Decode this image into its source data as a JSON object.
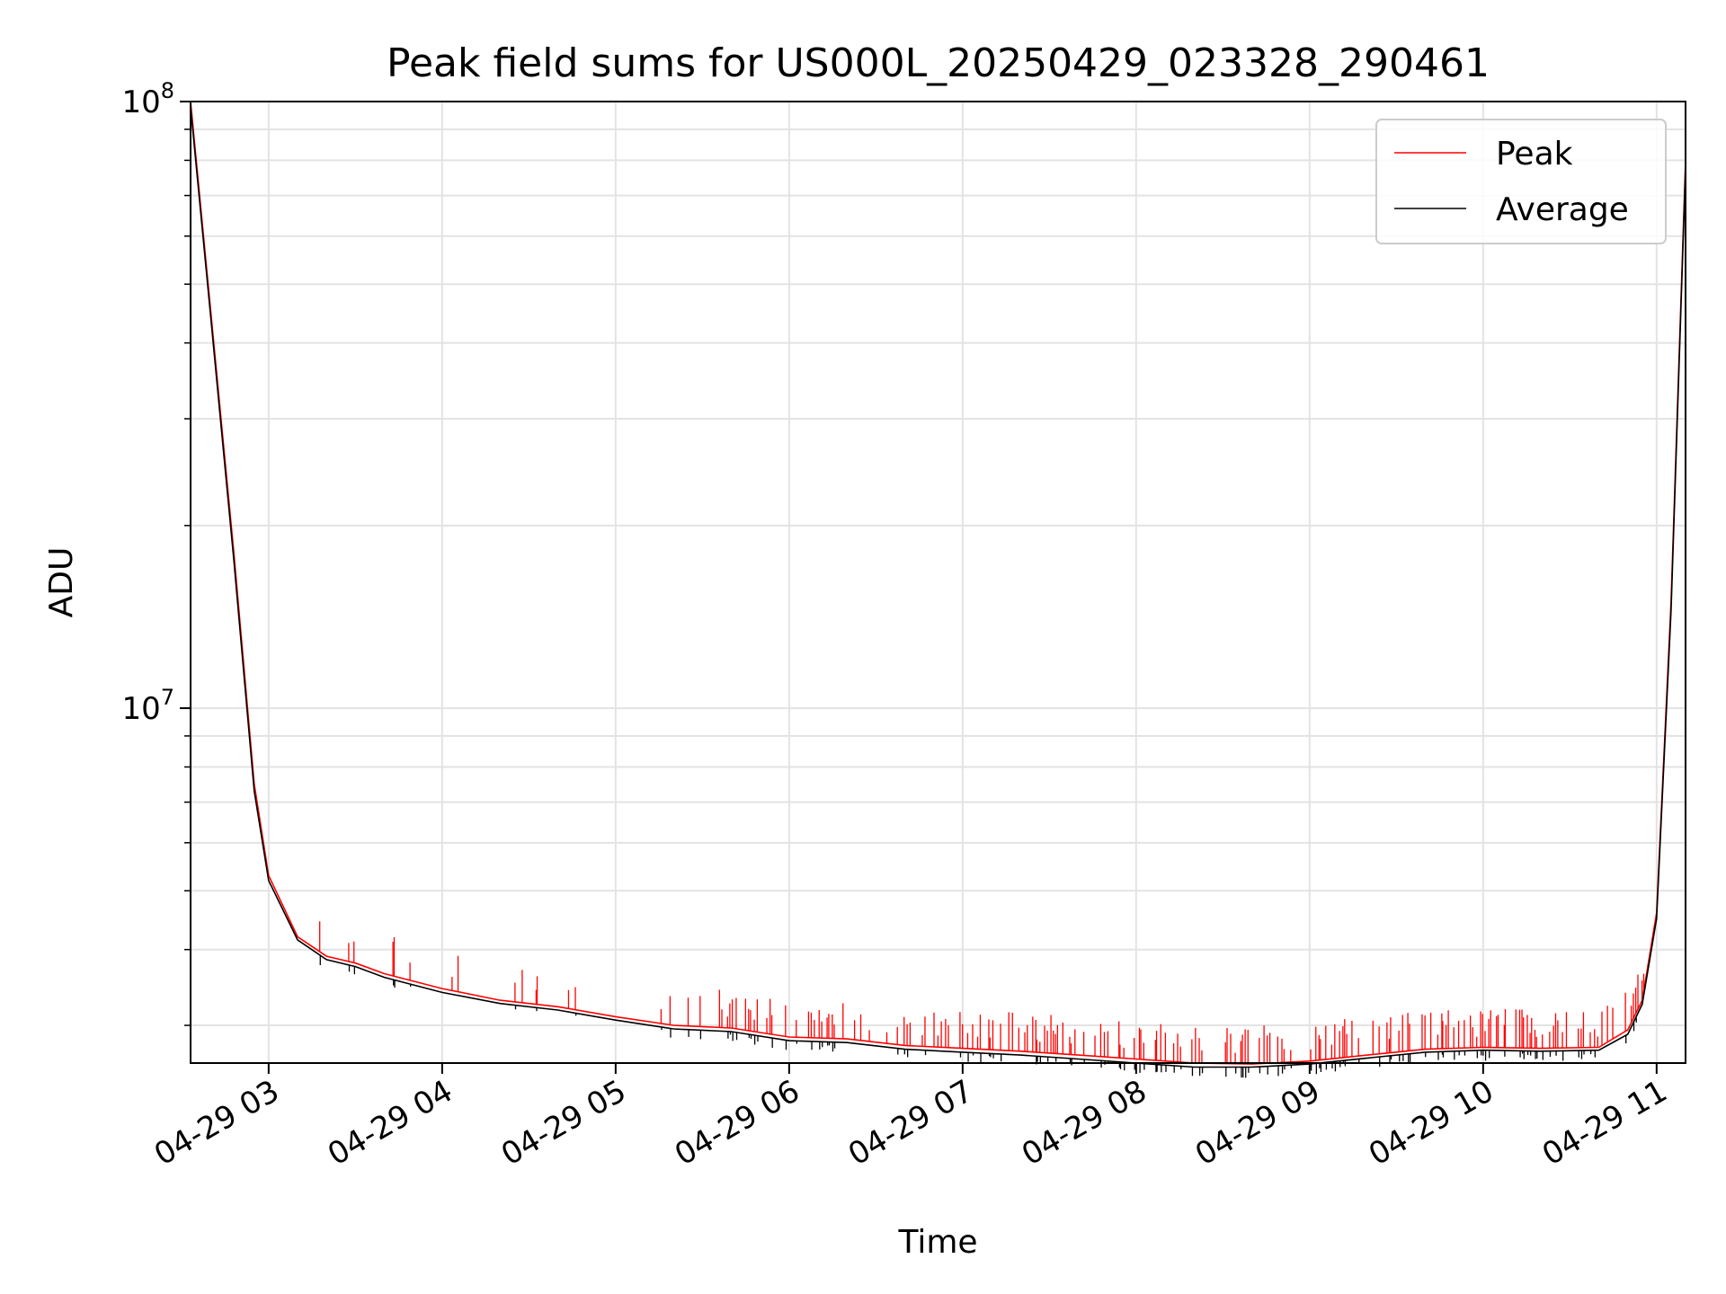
{
  "chart_data": {
    "type": "line",
    "title": "Peak field sums for US000L_20250429_023328_290461",
    "xlabel": "Time",
    "ylabel": "ADU",
    "yscale": "log",
    "ylim": [
      2600000,
      100000000
    ],
    "xlim": [
      "2025-04-29 02:33",
      "2025-04-29 11:10"
    ],
    "grid": true,
    "legend_position": "top-right",
    "x_tick_labels": [
      "04-29 03",
      "04-29 04",
      "04-29 05",
      "04-29 06",
      "04-29 07",
      "04-29 08",
      "04-29 09",
      "04-29 10",
      "04-29 11"
    ],
    "y_tick_labels": [
      {
        "base": "10",
        "exp": "8",
        "value": 100000000
      },
      {
        "base": "10",
        "exp": "7",
        "value": 10000000
      }
    ],
    "colors": {
      "Peak": "#ff0000",
      "Average": "#000000"
    },
    "series": [
      {
        "name": "Peak",
        "x": [
          "2025-04-29 02:33",
          "2025-04-29 02:40",
          "2025-04-29 02:48",
          "2025-04-29 02:55",
          "2025-04-29 03:00",
          "2025-04-29 03:10",
          "2025-04-29 03:20",
          "2025-04-29 03:30",
          "2025-04-29 03:40",
          "2025-04-29 04:00",
          "2025-04-29 04:20",
          "2025-04-29 04:40",
          "2025-04-29 05:00",
          "2025-04-29 05:20",
          "2025-04-29 05:40",
          "2025-04-29 06:00",
          "2025-04-29 06:20",
          "2025-04-29 06:40",
          "2025-04-29 07:00",
          "2025-04-29 07:20",
          "2025-04-29 07:40",
          "2025-04-29 08:00",
          "2025-04-29 08:20",
          "2025-04-29 08:40",
          "2025-04-29 09:00",
          "2025-04-29 09:20",
          "2025-04-29 09:40",
          "2025-04-29 10:00",
          "2025-04-29 10:20",
          "2025-04-29 10:40",
          "2025-04-29 10:50",
          "2025-04-29 10:55",
          "2025-04-29 11:00",
          "2025-04-29 11:05",
          "2025-04-29 11:10"
        ],
        "y": [
          100000000,
          45000000,
          18000000,
          7500000,
          5300000,
          4200000,
          3900000,
          3800000,
          3650000,
          3450000,
          3300000,
          3220000,
          3100000,
          3000000,
          2970000,
          2870000,
          2850000,
          2780000,
          2750000,
          2720000,
          2680000,
          2640000,
          2600000,
          2590000,
          2620000,
          2680000,
          2740000,
          2760000,
          2750000,
          2760000,
          2950000,
          3300000,
          4600000,
          15000000,
          80000000
        ]
      },
      {
        "name": "Average",
        "x": [
          "2025-04-29 02:33",
          "2025-04-29 02:40",
          "2025-04-29 02:48",
          "2025-04-29 02:55",
          "2025-04-29 03:00",
          "2025-04-29 03:10",
          "2025-04-29 03:20",
          "2025-04-29 03:30",
          "2025-04-29 03:40",
          "2025-04-29 04:00",
          "2025-04-29 04:20",
          "2025-04-29 04:40",
          "2025-04-29 05:00",
          "2025-04-29 05:20",
          "2025-04-29 05:40",
          "2025-04-29 06:00",
          "2025-04-29 06:20",
          "2025-04-29 06:40",
          "2025-04-29 07:00",
          "2025-04-29 07:20",
          "2025-04-29 07:40",
          "2025-04-29 08:00",
          "2025-04-29 08:20",
          "2025-04-29 08:40",
          "2025-04-29 09:00",
          "2025-04-29 09:20",
          "2025-04-29 09:40",
          "2025-04-29 10:00",
          "2025-04-29 10:20",
          "2025-04-29 10:40",
          "2025-04-29 10:50",
          "2025-04-29 10:55",
          "2025-04-29 11:00",
          "2025-04-29 11:05",
          "2025-04-29 11:10"
        ],
        "y": [
          98000000,
          44000000,
          17500000,
          7300000,
          5200000,
          4150000,
          3850000,
          3750000,
          3600000,
          3400000,
          3260000,
          3180000,
          3060000,
          2960000,
          2930000,
          2830000,
          2810000,
          2740000,
          2710000,
          2680000,
          2640000,
          2600000,
          2560000,
          2560000,
          2590000,
          2650000,
          2710000,
          2730000,
          2720000,
          2730000,
          2900000,
          3250000,
          4500000,
          14500000,
          78000000
        ]
      }
    ]
  }
}
